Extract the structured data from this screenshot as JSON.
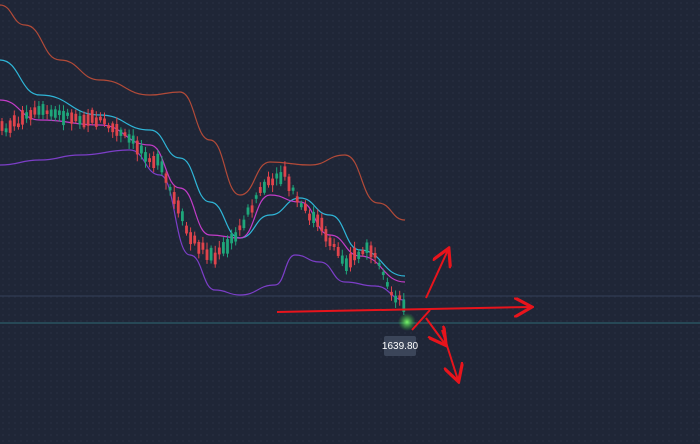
{
  "price_label": {
    "text": "1639.80"
  }
}
